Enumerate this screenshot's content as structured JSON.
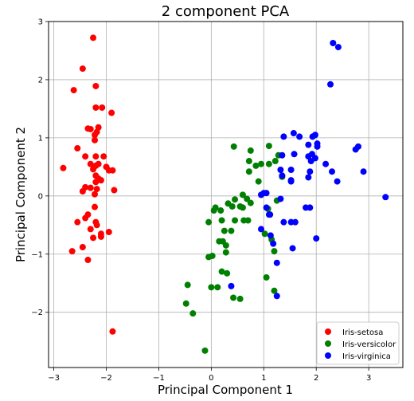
{
  "chart_data": {
    "type": "scatter",
    "title": "2 component PCA",
    "xlabel": "Principal Component 1",
    "ylabel": "Principal Component 2",
    "xlim": [
      -3.1,
      3.65
    ],
    "ylim": [
      -2.95,
      3.0
    ],
    "xticks": [
      -3,
      -2,
      -1,
      0,
      1,
      2,
      3
    ],
    "yticks": [
      -2,
      -1,
      0,
      1,
      2,
      3
    ],
    "grid": true,
    "legend_position": "lower-right",
    "series": [
      {
        "name": "Iris-setosa",
        "color": "#ff0000",
        "points": [
          [
            -2.25,
            2.72
          ],
          [
            -2.45,
            2.19
          ],
          [
            -2.2,
            1.89
          ],
          [
            -2.2,
            1.52
          ],
          [
            -2.08,
            1.52
          ],
          [
            -1.9,
            1.43
          ],
          [
            -2.62,
            1.82
          ],
          [
            -2.35,
            1.16
          ],
          [
            -2.3,
            1.15
          ],
          [
            -2.15,
            1.18
          ],
          [
            -2.18,
            1.1
          ],
          [
            -2.22,
            1.05
          ],
          [
            -2.22,
            0.96
          ],
          [
            -2.55,
            0.82
          ],
          [
            -2.4,
            0.68
          ],
          [
            -2.2,
            0.68
          ],
          [
            -2.05,
            0.68
          ],
          [
            -2.3,
            0.55
          ],
          [
            -2.2,
            0.52
          ],
          [
            -2.15,
            0.55
          ],
          [
            -2.25,
            0.46
          ],
          [
            -2.0,
            0.5
          ],
          [
            -1.95,
            0.44
          ],
          [
            -1.88,
            0.44
          ],
          [
            -2.82,
            0.48
          ],
          [
            -2.2,
            0.35
          ],
          [
            -2.15,
            0.3
          ],
          [
            -2.1,
            0.27
          ],
          [
            -2.2,
            0.24
          ],
          [
            -2.4,
            0.15
          ],
          [
            -2.3,
            0.14
          ],
          [
            -2.18,
            0.12
          ],
          [
            -2.45,
            0.08
          ],
          [
            -2.22,
            0.03
          ],
          [
            -1.85,
            0.1
          ],
          [
            -2.22,
            -0.19
          ],
          [
            -2.35,
            -0.32
          ],
          [
            -2.4,
            -0.38
          ],
          [
            -2.55,
            -0.45
          ],
          [
            -2.2,
            -0.45
          ],
          [
            -2.18,
            -0.5
          ],
          [
            -2.3,
            -0.57
          ],
          [
            -1.95,
            -0.62
          ],
          [
            -2.1,
            -0.65
          ],
          [
            -2.1,
            -0.7
          ],
          [
            -2.25,
            -0.72
          ],
          [
            -2.45,
            -0.88
          ],
          [
            -2.65,
            -0.95
          ],
          [
            -2.35,
            -1.1
          ],
          [
            -1.88,
            -2.33
          ]
        ]
      },
      {
        "name": "Iris-versicolor",
        "color": "#008000",
        "points": [
          [
            1.1,
            0.86
          ],
          [
            0.43,
            0.85
          ],
          [
            0.75,
            0.78
          ],
          [
            1.28,
            0.7
          ],
          [
            0.72,
            0.6
          ],
          [
            1.22,
            0.6
          ],
          [
            0.95,
            0.55
          ],
          [
            1.1,
            0.55
          ],
          [
            0.85,
            0.52
          ],
          [
            0.72,
            0.42
          ],
          [
            1.35,
            0.33
          ],
          [
            0.9,
            0.25
          ],
          [
            0.6,
            0.02
          ],
          [
            0.68,
            -0.05
          ],
          [
            0.45,
            -0.06
          ],
          [
            0.75,
            -0.12
          ],
          [
            0.32,
            -0.13
          ],
          [
            0.55,
            -0.18
          ],
          [
            0.6,
            -0.2
          ],
          [
            0.4,
            -0.18
          ],
          [
            0.18,
            -0.25
          ],
          [
            0.08,
            -0.2
          ],
          [
            0.05,
            -0.25
          ],
          [
            1.25,
            -0.08
          ],
          [
            1.08,
            -0.22
          ],
          [
            -0.05,
            -0.45
          ],
          [
            0.2,
            -0.42
          ],
          [
            0.45,
            -0.42
          ],
          [
            0.62,
            -0.42
          ],
          [
            0.7,
            -0.42
          ],
          [
            0.25,
            -0.6
          ],
          [
            0.38,
            -0.6
          ],
          [
            0.15,
            -0.78
          ],
          [
            0.22,
            -0.78
          ],
          [
            0.28,
            -0.85
          ],
          [
            1.15,
            -0.75
          ],
          [
            1.02,
            -0.65
          ],
          [
            0.28,
            -0.97
          ],
          [
            1.2,
            -0.95
          ],
          [
            -0.05,
            -1.05
          ],
          [
            0.02,
            -1.03
          ],
          [
            0.2,
            -1.3
          ],
          [
            0.3,
            -1.33
          ],
          [
            1.05,
            -1.4
          ],
          [
            -0.45,
            -1.53
          ],
          [
            0.0,
            -1.57
          ],
          [
            0.12,
            -1.57
          ],
          [
            1.2,
            -1.63
          ],
          [
            0.42,
            -1.75
          ],
          [
            0.55,
            -1.77
          ],
          [
            -0.48,
            -1.85
          ],
          [
            -0.35,
            -2.02
          ],
          [
            -0.12,
            -2.66
          ]
        ]
      },
      {
        "name": "Iris-virginica",
        "color": "#0000ff",
        "points": [
          [
            2.32,
            2.63
          ],
          [
            2.42,
            2.56
          ],
          [
            2.27,
            1.92
          ],
          [
            1.57,
            1.08
          ],
          [
            1.68,
            1.02
          ],
          [
            1.93,
            1.02
          ],
          [
            1.98,
            1.05
          ],
          [
            1.38,
            1.02
          ],
          [
            2.02,
            0.9
          ],
          [
            1.85,
            0.88
          ],
          [
            2.02,
            0.85
          ],
          [
            2.8,
            0.85
          ],
          [
            2.75,
            0.8
          ],
          [
            1.58,
            0.72
          ],
          [
            1.85,
            0.68
          ],
          [
            1.92,
            0.72
          ],
          [
            1.35,
            0.7
          ],
          [
            1.98,
            0.65
          ],
          [
            2.18,
            0.55
          ],
          [
            1.9,
            0.6
          ],
          [
            1.32,
            0.45
          ],
          [
            1.52,
            0.45
          ],
          [
            1.88,
            0.42
          ],
          [
            2.3,
            0.42
          ],
          [
            2.9,
            0.42
          ],
          [
            1.35,
            0.35
          ],
          [
            1.85,
            0.32
          ],
          [
            1.52,
            0.27
          ],
          [
            1.52,
            0.25
          ],
          [
            2.4,
            0.25
          ],
          [
            1.0,
            0.05
          ],
          [
            1.05,
            0.05
          ],
          [
            0.95,
            0.02
          ],
          [
            1.32,
            -0.05
          ],
          [
            1.05,
            -0.2
          ],
          [
            1.8,
            -0.2
          ],
          [
            1.88,
            -0.2
          ],
          [
            1.1,
            -0.32
          ],
          [
            1.12,
            -0.32
          ],
          [
            1.38,
            -0.45
          ],
          [
            1.52,
            -0.45
          ],
          [
            1.6,
            -0.45
          ],
          [
            3.32,
            -0.02
          ],
          [
            0.95,
            -0.57
          ],
          [
            1.13,
            -0.68
          ],
          [
            2.0,
            -0.73
          ],
          [
            1.18,
            -0.82
          ],
          [
            1.55,
            -0.9
          ],
          [
            1.25,
            -1.15
          ],
          [
            0.38,
            -1.55
          ],
          [
            1.25,
            -1.72
          ]
        ]
      }
    ]
  }
}
